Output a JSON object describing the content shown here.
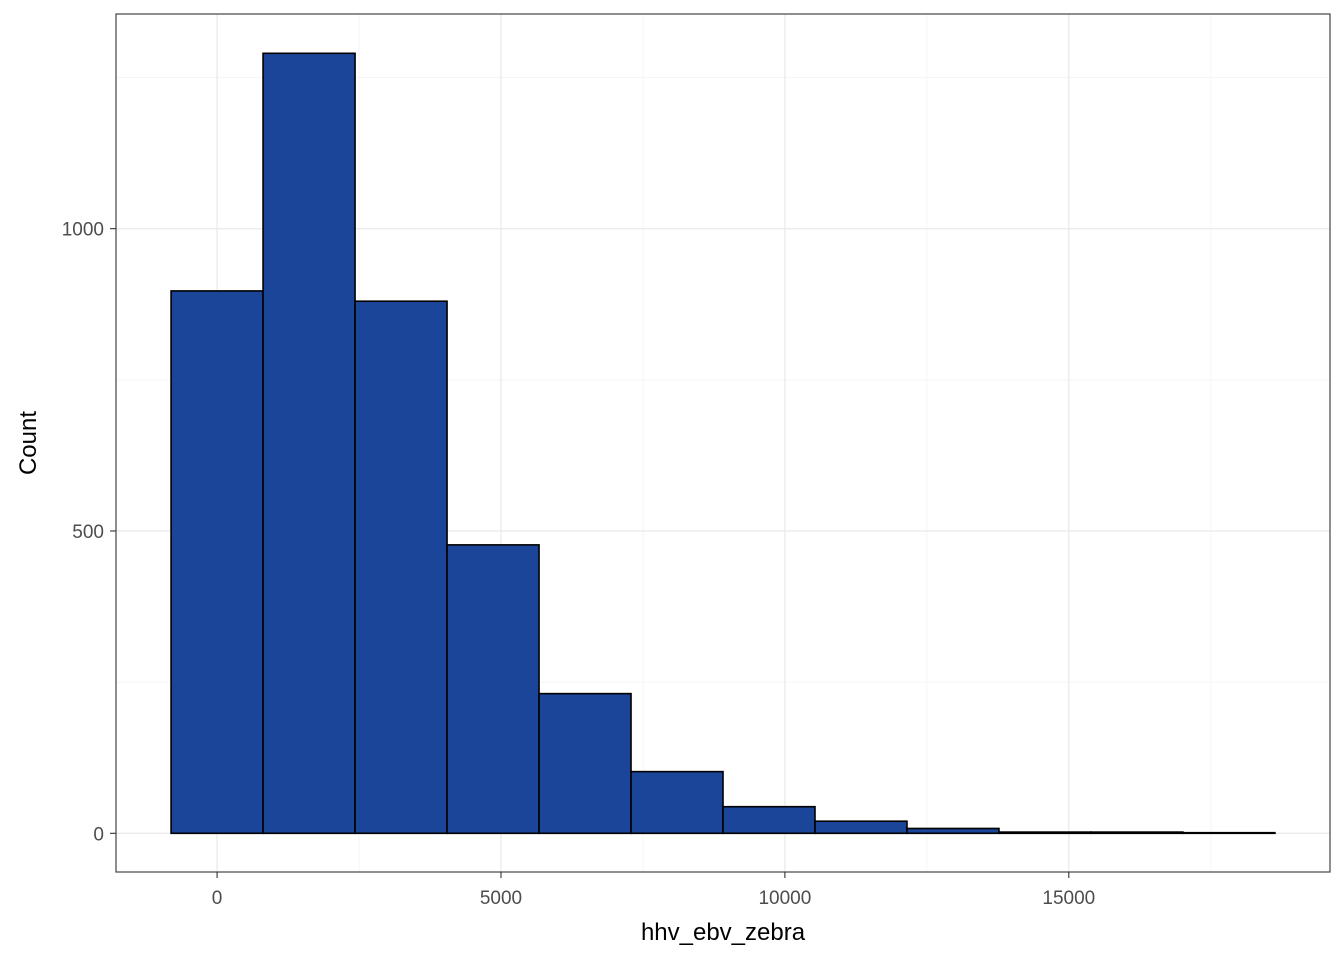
{
  "chart_data": {
    "type": "bar",
    "subtype": "histogram",
    "title": "",
    "xlabel": "hhv_ebv_zebra",
    "ylabel": "Count",
    "bin_width": 1620,
    "bins": [
      {
        "x0": -810,
        "x1": 810,
        "count": 897
      },
      {
        "x0": 810,
        "x1": 2430,
        "count": 1290
      },
      {
        "x0": 2430,
        "x1": 4050,
        "count": 880
      },
      {
        "x0": 4050,
        "x1": 5670,
        "count": 477
      },
      {
        "x0": 5670,
        "x1": 7290,
        "count": 231
      },
      {
        "x0": 7290,
        "x1": 8910,
        "count": 102
      },
      {
        "x0": 8910,
        "x1": 10530,
        "count": 44
      },
      {
        "x0": 10530,
        "x1": 12150,
        "count": 20
      },
      {
        "x0": 12150,
        "x1": 13770,
        "count": 8
      },
      {
        "x0": 13770,
        "x1": 15390,
        "count": 2
      },
      {
        "x0": 15390,
        "x1": 17010,
        "count": 2
      },
      {
        "x0": 17010,
        "x1": 18630,
        "count": 1
      }
    ],
    "xlim": [
      -1780,
      19600
    ],
    "ylim": [
      -64,
      1355
    ],
    "x_ticks": [
      0,
      5000,
      10000,
      15000
    ],
    "x_tick_labels": [
      "0",
      "5000",
      "10000",
      "15000"
    ],
    "y_ticks": [
      0,
      500,
      1000
    ],
    "y_tick_labels": [
      "0",
      "500",
      "1000"
    ],
    "grid": true,
    "legend": "none",
    "colors": {
      "bar_fill": "#1a4599",
      "bar_outline": "#000000",
      "grid_major": "#ebebeb",
      "grid_minor": "#f5f5f5",
      "panel_border": "#333333",
      "tick_text": "#4d4d4d"
    }
  }
}
